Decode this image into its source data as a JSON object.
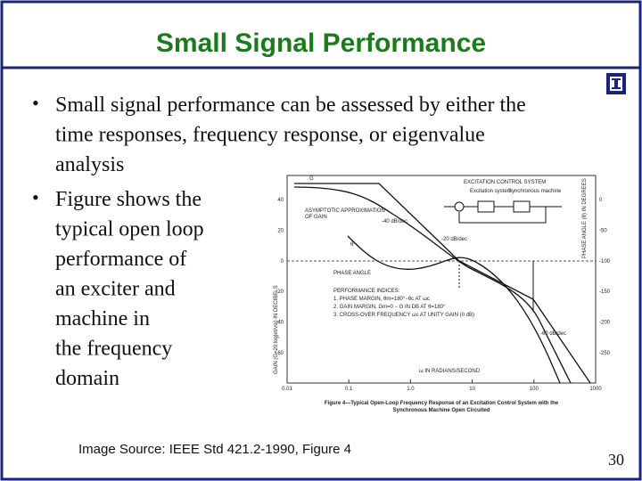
{
  "header": {
    "title": "Small Signal Performance"
  },
  "bullets": [
    {
      "lines": [
        "Small signal performance can be assessed by either the",
        "time responses, frequency response, or eigenvalue",
        "analysis"
      ]
    },
    {
      "lines": [
        "Figure shows the",
        "typical open loop",
        "performance of",
        "an exciter and",
        "machine in",
        "the frequency",
        "domain"
      ]
    }
  ],
  "figure": {
    "x_ticks": [
      "0.01",
      "0.1",
      "1.0",
      "10",
      "100",
      "1000"
    ],
    "gain_ticks": [
      "40",
      "20",
      "0",
      "-20",
      "-40",
      "-60"
    ],
    "phase_ticks": [
      "0",
      "-50",
      "-100",
      "-150",
      "-200",
      "-250"
    ],
    "gain_axis_label": "GAIN (G=20 log|et/vs|) IN DECIBELS",
    "phase_axis_label": "PHASE ANGLE (θ) IN DEGREES",
    "x_axis_label": "ω IN RADIANS/SECOND",
    "asymptote_label": [
      "ASYMPTOTIC APPROXIMATION",
      "OF GAIN"
    ],
    "slope_labels": [
      "-40 dB/dec",
      "-20 dB/dec",
      "-60 dB/dec"
    ],
    "phase_label": "PHASE ANGLE",
    "gain_symbol": "G",
    "phase_symbol": "θ",
    "block_title": "EXCITATION CONTROL SYSTEM",
    "block_names": [
      "Excitation system",
      "Synchronous machine"
    ],
    "indices": [
      "PERFORMANCE INDICES:",
      "1. PHASE MARGIN, θm=180°−θc AT ωc",
      "2. GAIN MARGIN, Gm=0 − G IN DB AT θ=180°",
      "3. CROSS-OVER FREQUENCY ωc AT UNITY GAIN (0 dB)"
    ],
    "caption": [
      "Figure 4—Typical Open-Loop Frequency Response of an Excitation Control System with the",
      "Synchronous Machine Open Circuited"
    ]
  },
  "footer": {
    "source": "Image Source: IEEE Std 421.2-1990, Figure 4",
    "page": "30"
  }
}
